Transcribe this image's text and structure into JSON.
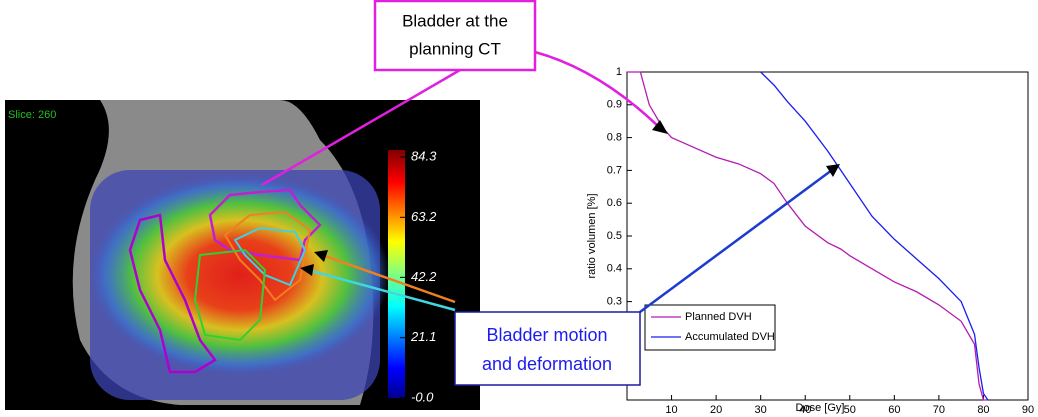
{
  "chart_data": {
    "type": "line",
    "x_label": "Dose [Gy]",
    "y_label": "ratio volumen [%]",
    "x": [
      0,
      3,
      5,
      8,
      10,
      15,
      20,
      25,
      30,
      33,
      36,
      40,
      45,
      48,
      50,
      55,
      60,
      65,
      70,
      75,
      78,
      79,
      80,
      81
    ],
    "series": [
      {
        "name": "Planned DVH",
        "color": "#b31cb3",
        "values": [
          1,
          1,
          0.9,
          0.83,
          0.8,
          0.77,
          0.74,
          0.72,
          0.69,
          0.66,
          0.6,
          0.53,
          0.48,
          0.46,
          0.44,
          0.4,
          0.36,
          0.33,
          0.29,
          0.24,
          0.17,
          0.05,
          0,
          0
        ]
      },
      {
        "name": "Accumulated DVH",
        "color": "#1c1cf0",
        "values": [
          null,
          null,
          null,
          null,
          null,
          null,
          null,
          null,
          1,
          0.96,
          0.91,
          0.85,
          0.76,
          0.7,
          0.66,
          0.56,
          0.49,
          0.43,
          0.37,
          0.3,
          0.2,
          0.1,
          0.02,
          0
        ]
      }
    ],
    "xlim": [
      0,
      90
    ],
    "xticks": [
      10,
      20,
      30,
      40,
      50,
      60,
      70,
      80,
      90
    ],
    "ylim": [
      0,
      1
    ],
    "yticks": [
      0.3,
      0.4,
      0.5,
      0.6,
      0.7,
      0.8,
      0.9,
      1
    ],
    "legend": "lower left"
  },
  "image": {
    "slice_label": "Slice: 260",
    "colorbar": {
      "lim": [
        0,
        84.3
      ],
      "ticks": [
        84.3,
        63.2,
        42.2,
        21.1,
        {
          "value": 0,
          "label": "-0.0"
        }
      ]
    }
  },
  "annotations": {
    "planning": [
      "Bladder at the",
      "planning CT"
    ],
    "motion": [
      "Bladder motion",
      "and deformation"
    ]
  }
}
